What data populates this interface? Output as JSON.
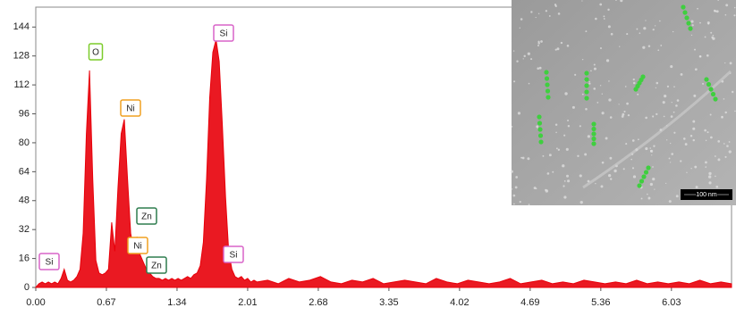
{
  "chart_data": {
    "type": "area",
    "x": [
      0.0,
      0.03,
      0.06,
      0.09,
      0.12,
      0.15,
      0.18,
      0.21,
      0.24,
      0.27,
      0.3,
      0.33,
      0.36,
      0.39,
      0.42,
      0.45,
      0.48,
      0.51,
      0.54,
      0.57,
      0.6,
      0.63,
      0.66,
      0.69,
      0.72,
      0.75,
      0.78,
      0.81,
      0.84,
      0.87,
      0.9,
      0.93,
      0.96,
      0.99,
      1.02,
      1.05,
      1.08,
      1.11,
      1.14,
      1.17,
      1.2,
      1.23,
      1.26,
      1.29,
      1.32,
      1.35,
      1.38,
      1.41,
      1.44,
      1.47,
      1.5,
      1.53,
      1.56,
      1.59,
      1.62,
      1.65,
      1.68,
      1.71,
      1.74,
      1.77,
      1.8,
      1.83,
      1.86,
      1.89,
      1.92,
      1.95,
      1.98,
      2.01,
      2.04,
      2.07,
      2.1,
      2.2,
      2.3,
      2.4,
      2.5,
      2.6,
      2.7,
      2.8,
      2.9,
      3.0,
      3.1,
      3.2,
      3.3,
      3.4,
      3.5,
      3.6,
      3.7,
      3.8,
      3.9,
      4.0,
      4.1,
      4.2,
      4.3,
      4.4,
      4.5,
      4.6,
      4.7,
      4.8,
      4.9,
      5.0,
      5.1,
      5.2,
      5.3,
      5.4,
      5.5,
      5.6,
      5.7,
      5.8,
      5.9,
      6.0,
      6.1,
      6.2,
      6.3,
      6.4,
      6.5,
      6.6
    ],
    "series": [
      {
        "color": "#e8000a",
        "values": [
          0,
          2,
          3,
          2,
          3,
          2,
          3,
          2,
          5,
          10,
          4,
          3,
          4,
          6,
          10,
          30,
          85,
          120,
          60,
          15,
          8,
          7,
          8,
          10,
          36,
          20,
          55,
          85,
          93,
          60,
          30,
          20,
          28,
          18,
          14,
          10,
          8,
          6,
          5,
          5,
          4,
          5,
          4,
          5,
          4,
          5,
          4,
          5,
          6,
          5,
          7,
          8,
          12,
          25,
          60,
          105,
          130,
          137,
          125,
          90,
          50,
          20,
          10,
          6,
          5,
          6,
          4,
          5,
          3,
          4,
          3,
          4,
          2,
          5,
          3,
          4,
          6,
          3,
          2,
          4,
          3,
          5,
          2,
          3,
          4,
          3,
          2,
          5,
          3,
          2,
          4,
          3,
          2,
          3,
          5,
          2,
          3,
          4,
          2,
          3,
          2,
          4,
          3,
          2,
          3,
          2,
          4,
          2,
          3,
          2,
          3,
          2,
          4,
          2,
          3,
          2
        ]
      }
    ],
    "xlim": [
      0,
      6.6
    ],
    "ylim": [
      0,
      155
    ],
    "xticks": [
      {
        "value": 0,
        "label": "0.00"
      },
      0.67,
      1.34,
      2.01,
      2.68,
      3.35,
      4.02,
      4.69,
      5.36,
      6.03
    ],
    "yticks": [
      0,
      16,
      32,
      48,
      64,
      80,
      96,
      112,
      128,
      144
    ],
    "annotations": [
      {
        "text": "O",
        "color": "#7ccc2a"
      },
      {
        "text": "Ni",
        "color": "#f0a020"
      },
      {
        "text": "Zn",
        "color": "#2e7d4f"
      },
      {
        "text": "Ni",
        "color": "#f0a020"
      },
      {
        "text": "Zn",
        "color": "#2e7d4f"
      },
      {
        "text": "Si",
        "color": "#d864c8"
      },
      {
        "text": "Si",
        "color": "#d864c8"
      },
      {
        "text": "Si",
        "color": "#d864c8"
      }
    ],
    "inset_scale_label": "100 nm"
  }
}
